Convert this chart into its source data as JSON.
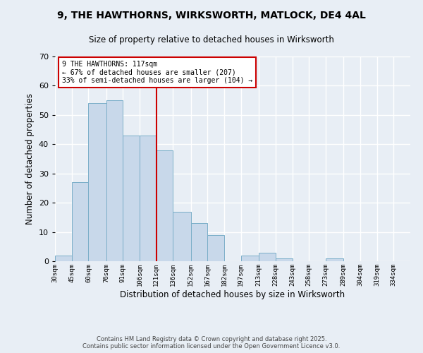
{
  "title": "9, THE HAWTHORNS, WIRKSWORTH, MATLOCK, DE4 4AL",
  "subtitle": "Size of property relative to detached houses in Wirksworth",
  "xlabel": "Distribution of detached houses by size in Wirksworth",
  "ylabel": "Number of detached properties",
  "bar_color": "#c8d8ea",
  "bar_edge_color": "#7aaec8",
  "background_color": "#e8eef5",
  "grid_color": "#ffffff",
  "categories": [
    "30sqm",
    "45sqm",
    "60sqm",
    "76sqm",
    "91sqm",
    "106sqm",
    "121sqm",
    "136sqm",
    "152sqm",
    "167sqm",
    "182sqm",
    "197sqm",
    "213sqm",
    "228sqm",
    "243sqm",
    "258sqm",
    "273sqm",
    "289sqm",
    "304sqm",
    "319sqm",
    "334sqm"
  ],
  "values": [
    2,
    27,
    54,
    55,
    43,
    43,
    38,
    17,
    13,
    9,
    0,
    2,
    3,
    1,
    0,
    0,
    1,
    0,
    0,
    0,
    0
  ],
  "bin_edges": [
    30,
    45,
    60,
    76,
    91,
    106,
    121,
    136,
    152,
    167,
    182,
    197,
    213,
    228,
    243,
    258,
    273,
    289,
    304,
    319,
    334,
    349
  ],
  "ylim": [
    0,
    70
  ],
  "yticks": [
    0,
    10,
    20,
    30,
    40,
    50,
    60,
    70
  ],
  "vline_x": 121,
  "vline_color": "#cc0000",
  "annotation_title": "9 THE HAWTHORNS: 117sqm",
  "annotation_line1": "← 67% of detached houses are smaller (207)",
  "annotation_line2": "33% of semi-detached houses are larger (104) →",
  "annotation_box_color": "#ffffff",
  "annotation_box_edge": "#cc0000",
  "footer1": "Contains HM Land Registry data © Crown copyright and database right 2025.",
  "footer2": "Contains public sector information licensed under the Open Government Licence v3.0."
}
